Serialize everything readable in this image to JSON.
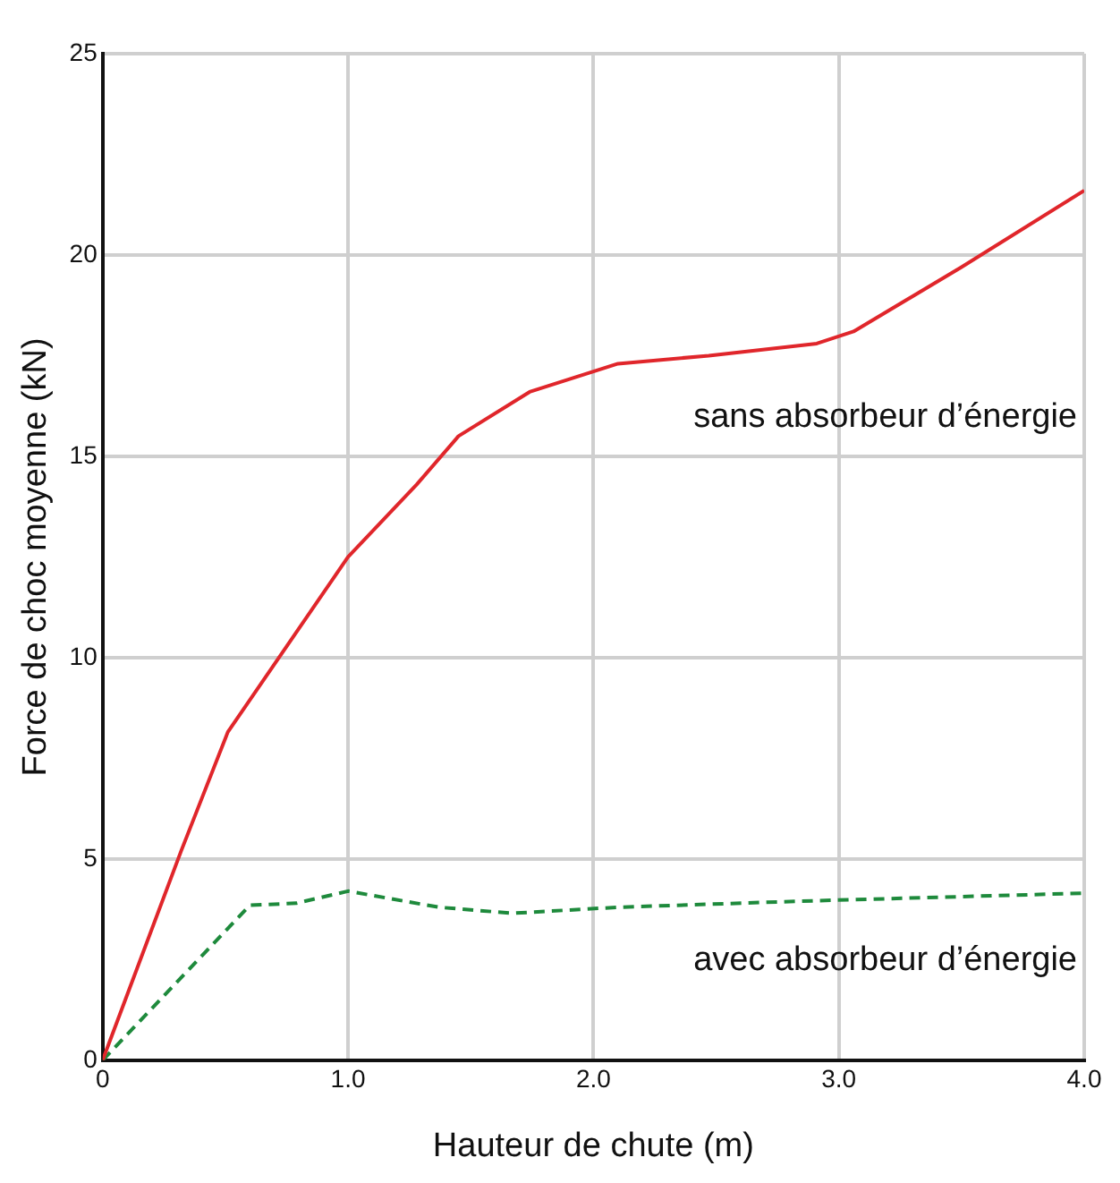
{
  "chart_data": {
    "type": "line",
    "xlabel": "Hauteur de chute (m)",
    "ylabel": "Force de choc moyenne (kN)",
    "xlim": [
      0,
      4
    ],
    "ylim": [
      0,
      25
    ],
    "xticks": [
      0,
      {
        "value": 1,
        "label": "1.0"
      },
      {
        "value": 2,
        "label": "2.0"
      },
      {
        "value": 3,
        "label": "3.0"
      },
      {
        "value": 4,
        "label": "4.0"
      }
    ],
    "yticks": [
      0,
      5,
      10,
      15,
      20,
      25
    ],
    "grid": true,
    "legend": false,
    "marker": "none",
    "series": [
      {
        "name": "sans absorbeur d’énergie",
        "color": "#e0262b",
        "line_style": "solid",
        "x": [
          0,
          0.32,
          0.51,
          1.0,
          1.28,
          1.45,
          1.74,
          2.1,
          2.47,
          2.91,
          3.06,
          3.5,
          4.0
        ],
        "values": [
          0,
          5.2,
          8.15,
          12.5,
          14.3,
          15.5,
          16.6,
          17.3,
          17.5,
          17.8,
          18.1,
          19.7,
          21.6
        ]
      },
      {
        "name": "avec absorbeur d’énergie",
        "color": "#1e8a3c",
        "line_style": "dashed",
        "x": [
          0,
          0.6,
          0.79,
          1.0,
          1.37,
          1.67,
          2.1,
          2.84,
          4.0
        ],
        "values": [
          0,
          3.85,
          3.9,
          4.2,
          3.8,
          3.65,
          3.8,
          3.95,
          4.15
        ]
      }
    ]
  }
}
